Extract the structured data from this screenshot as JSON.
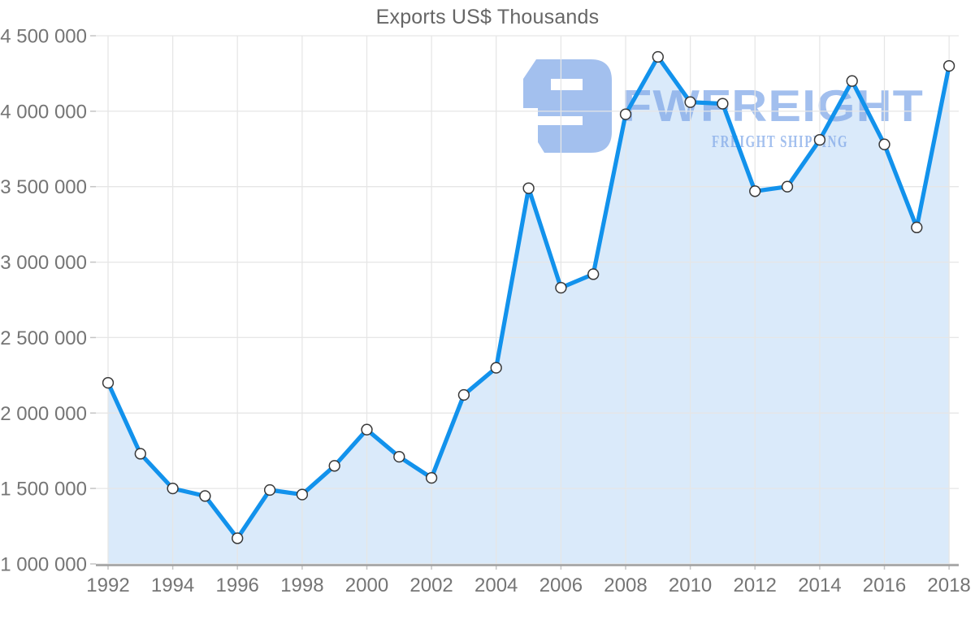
{
  "chart_data": {
    "type": "area",
    "title": "Exports US$ Thousands",
    "xlabel": "",
    "ylabel": "",
    "xlim": [
      1992,
      2018
    ],
    "ylim": [
      1000000,
      4500000
    ],
    "grid": true,
    "legend": "none",
    "x": [
      1992,
      1993,
      1994,
      1995,
      1996,
      1997,
      1998,
      1999,
      2000,
      2001,
      2002,
      2003,
      2004,
      2005,
      2006,
      2007,
      2008,
      2009,
      2010,
      2011,
      2012,
      2013,
      2014,
      2015,
      2016,
      2017,
      2018
    ],
    "series": [
      {
        "name": "Exports US$ Thousands",
        "values": [
          2200000,
          1730000,
          1500000,
          1450000,
          1170000,
          1490000,
          1460000,
          1650000,
          1890000,
          1710000,
          1570000,
          2120000,
          2300000,
          3490000,
          2830000,
          2920000,
          3980000,
          4360000,
          4060000,
          4050000,
          3470000,
          3500000,
          3810000,
          4200000,
          3780000,
          3230000,
          4300000
        ]
      }
    ],
    "x_ticks": [
      {
        "value": 1992,
        "label": "1992"
      },
      {
        "value": 1994,
        "label": "1994"
      },
      {
        "value": 1996,
        "label": "1996"
      },
      {
        "value": 1998,
        "label": "1998"
      },
      {
        "value": 2000,
        "label": "2000"
      },
      {
        "value": 2002,
        "label": "2002"
      },
      {
        "value": 2004,
        "label": "2004"
      },
      {
        "value": 2006,
        "label": "2006"
      },
      {
        "value": 2008,
        "label": "2008"
      },
      {
        "value": 2010,
        "label": "2010"
      },
      {
        "value": 2012,
        "label": "2012"
      },
      {
        "value": 2014,
        "label": "2014"
      },
      {
        "value": 2016,
        "label": "2016"
      },
      {
        "value": 2018,
        "label": "2018"
      }
    ],
    "y_ticks": [
      {
        "value": 4500000,
        "label": "4 500 000"
      },
      {
        "value": 4000000,
        "label": "4 000 000"
      },
      {
        "value": 3500000,
        "label": "3 500 000"
      },
      {
        "value": 3000000,
        "label": "3 000 000"
      },
      {
        "value": 2500000,
        "label": "2 500 000"
      },
      {
        "value": 2000000,
        "label": "2 000 000"
      },
      {
        "value": 1500000,
        "label": "1 500 000"
      },
      {
        "value": 1000000,
        "label": "1 000 000"
      }
    ],
    "colors": {
      "line": "#1292EC",
      "area_fill": "#DAEAFA",
      "marker_fill": "#FFFFFF",
      "marker_stroke": "#383838",
      "gridline": "#E6E6E6",
      "axis_line": "#A0A0A0",
      "tick_mark": "#C4C4C4",
      "tick_label": "#757575",
      "title": "#666666"
    }
  },
  "watermark": {
    "brand": "FWFREIGHT",
    "tagline": "FREIGHT SHIPPING",
    "color": "#7FA7E8"
  }
}
